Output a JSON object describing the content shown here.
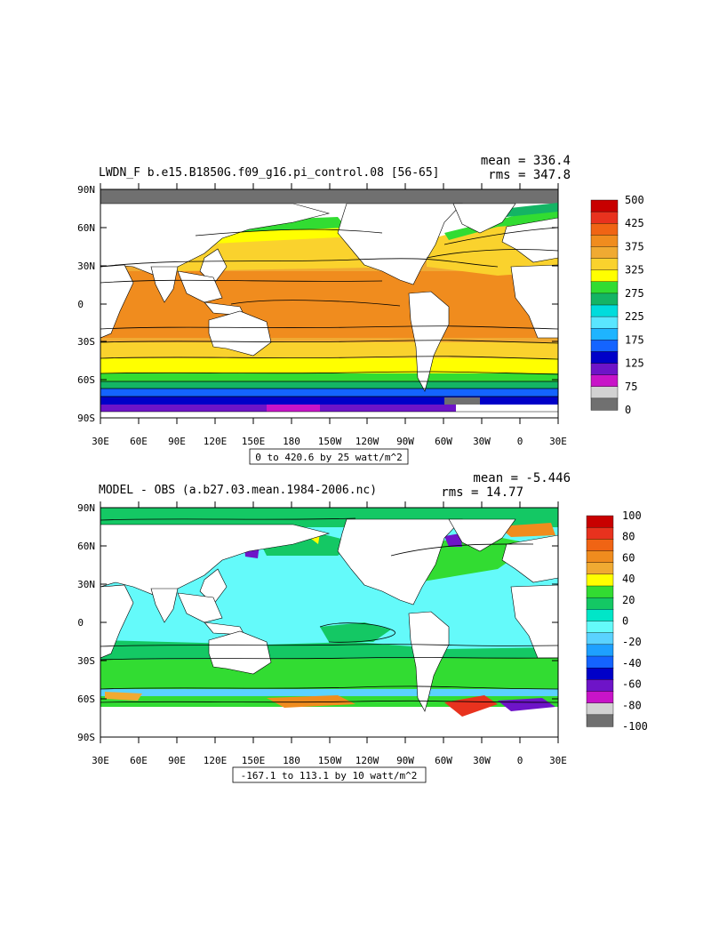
{
  "panels": [
    {
      "title": "LWDN_F b.e15.B1850G.f09_g16.pi_control.08 [56-65]",
      "mean_label": "mean = 336.4",
      "rms_label": "rms = 347.8",
      "contour_info": "0 to 420.6 by 25 watt/m^2",
      "colorbar": {
        "labels": [
          "500",
          "425",
          "375",
          "325",
          "275",
          "225",
          "175",
          "125",
          "75",
          "0"
        ],
        "colors": [
          "#c80000",
          "#e8321e",
          "#f06414",
          "#f08c1e",
          "#f0aa32",
          "#fad22d",
          "#ffff00",
          "#32dc32",
          "#14b464",
          "#00dcdc",
          "#5ae6ff",
          "#1eb4ff",
          "#1464ff",
          "#0000c8",
          "#6e14c8",
          "#c814c8",
          "#d2d2d2",
          "#707070"
        ]
      }
    },
    {
      "title": "MODEL - OBS (a.b27.03.mean.1984-2006.nc)",
      "mean_label": "mean = -5.446",
      "rms_label": "rms = 14.77",
      "contour_info": "-167.1 to 113.1 by 10 watt/m^2",
      "colorbar": {
        "labels": [
          "100",
          "80",
          "60",
          "40",
          "20",
          "0",
          "-20",
          "-40",
          "-60",
          "-80",
          "-100"
        ],
        "colors": [
          "#c80000",
          "#e8321e",
          "#f06414",
          "#f08c1e",
          "#f0aa32",
          "#ffff00",
          "#32dc32",
          "#14c864",
          "#00e6c8",
          "#64fafa",
          "#5ad2ff",
          "#1ea0ff",
          "#1464ff",
          "#0000c8",
          "#6e14c8",
          "#c814c8",
          "#d2d2d2",
          "#707070"
        ]
      }
    }
  ],
  "axes": {
    "lat_labels": [
      "90N",
      "60N",
      "30N",
      "0",
      "30S",
      "60S",
      "90S"
    ],
    "lon_labels": [
      "30E",
      "60E",
      "90E",
      "120E",
      "150E",
      "180",
      "150W",
      "120W",
      "90W",
      "60W",
      "30W",
      "0",
      "30E"
    ]
  }
}
